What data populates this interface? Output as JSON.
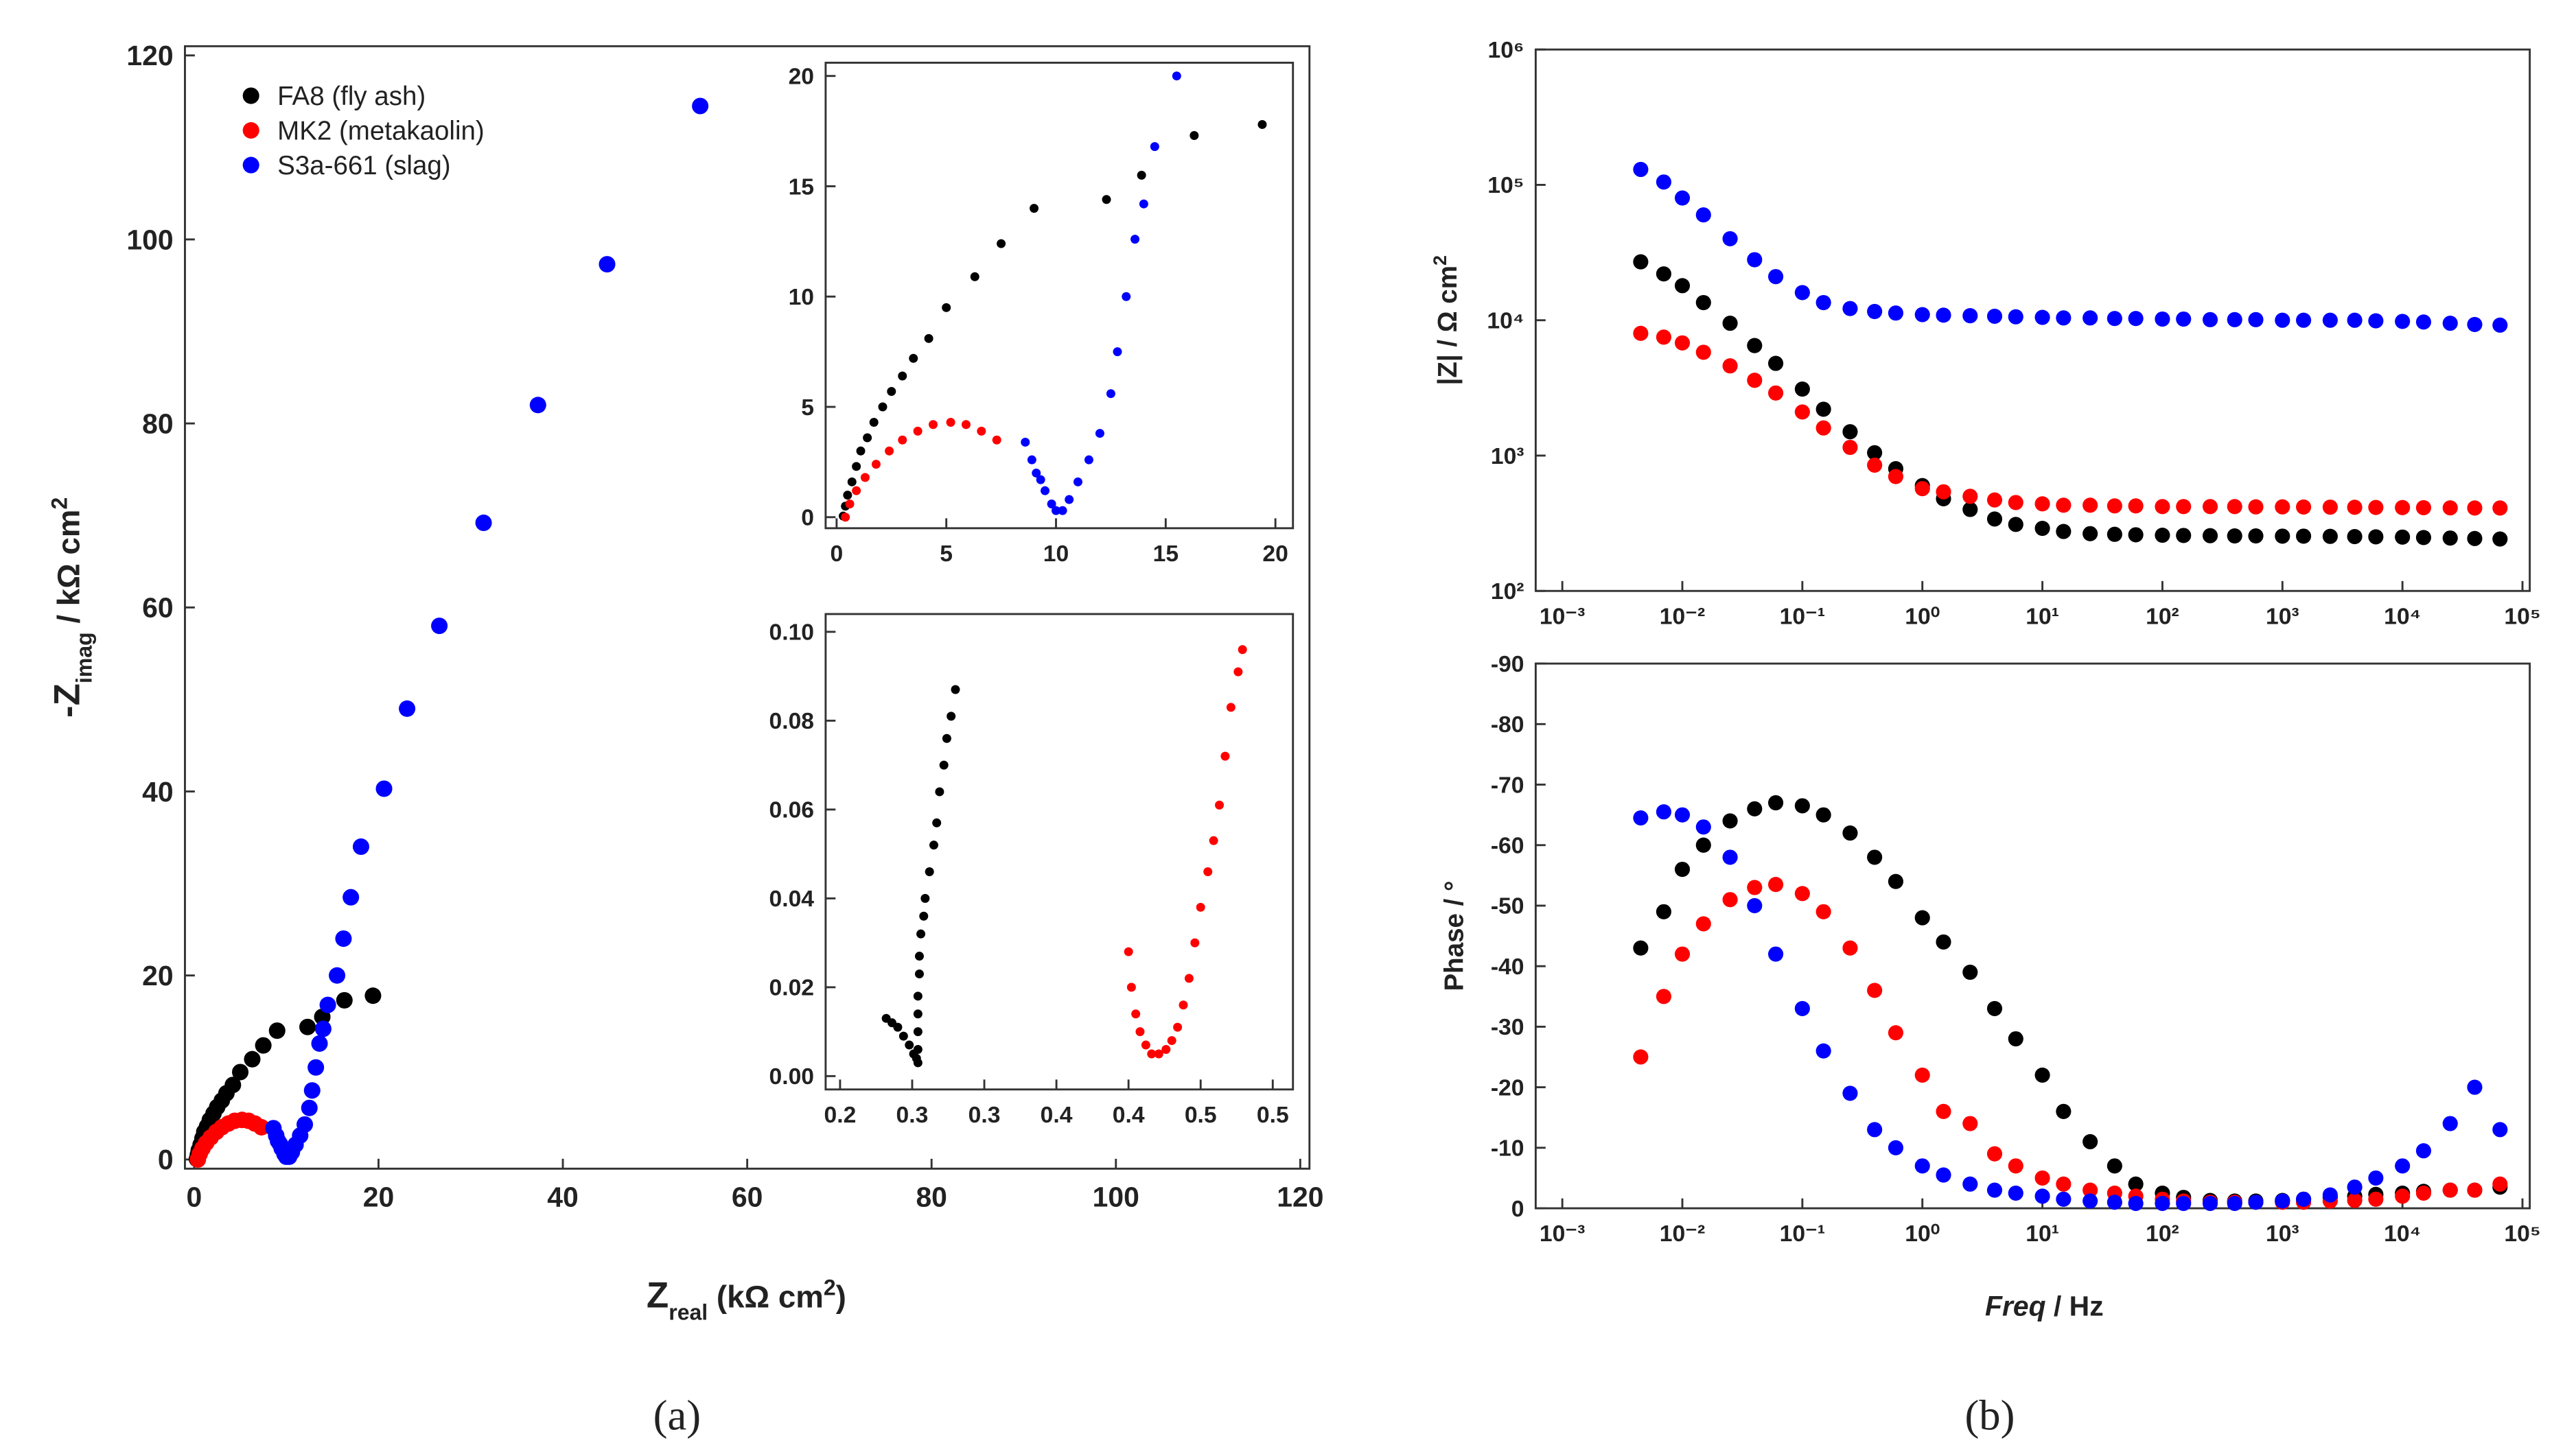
{
  "panel_labels": [
    "(a)",
    "(b)"
  ],
  "chart_data": [
    {
      "type": "scatter",
      "xlabel": [
        "Z",
        "real",
        " (kΩ cm",
        "2",
        ")"
      ],
      "ylabel": [
        "-Z",
        "imag",
        " / kΩ cm",
        "2"
      ],
      "xlim": [
        -1,
        121
      ],
      "ylim": [
        -1,
        121
      ],
      "xticks": [
        0,
        20,
        40,
        60,
        80,
        100,
        120
      ],
      "yticks": [
        0,
        20,
        40,
        60,
        80,
        100,
        120
      ],
      "legend": "upper left",
      "series": [
        {
          "name": "FA8 (fly ash)",
          "color": "#000000",
          "x": [
            0.3,
            0.4,
            0.5,
            0.7,
            0.9,
            1.1,
            1.4,
            1.7,
            2.1,
            2.5,
            3,
            3.5,
            4.2,
            5,
            6.3,
            7.5,
            9,
            12.3,
            13.9,
            16.3,
            19.4
          ],
          "values": [
            0.05,
            0.5,
            1,
            1.6,
            2.3,
            3,
            3.6,
            4.3,
            5,
            5.7,
            6.4,
            7.2,
            8.1,
            9.5,
            10.9,
            12.4,
            14,
            14.4,
            15.5,
            17.3,
            17.8
          ]
        },
        {
          "name": "MK2 (metakaolin)",
          "color": "#ff0000",
          "x": [
            0.4,
            0.6,
            0.9,
            1.3,
            1.8,
            2.4,
            3,
            3.7,
            4.4,
            5.2,
            5.9,
            6.6,
            7.3
          ],
          "values": [
            0,
            0.6,
            1.2,
            1.8,
            2.4,
            3,
            3.5,
            3.9,
            4.2,
            4.3,
            4.2,
            3.9,
            3.5
          ]
        },
        {
          "name": "S3a-661 (slag)",
          "color": "#0000ff",
          "x": [
            8.6,
            8.9,
            9.1,
            9.3,
            9.5,
            9.8,
            10,
            10.3,
            10.6,
            11,
            11.5,
            12,
            12.5,
            12.8,
            13.2,
            13.6,
            14,
            14.5,
            15.5,
            16.2,
            17,
            18.1,
            20.6,
            23.1,
            26.6,
            31.4,
            37.3,
            44.8,
            54.9
          ],
          "values": [
            3.4,
            2.6,
            2,
            1.7,
            1.2,
            0.6,
            0.3,
            0.3,
            0.8,
            1.6,
            2.6,
            3.8,
            5.6,
            7.5,
            10,
            12.6,
            14.2,
            16.8,
            20,
            24,
            28.5,
            34,
            40.3,
            49,
            58,
            69.2,
            82,
            97.3,
            114.5
          ]
        }
      ]
    },
    {
      "type": "scatter",
      "xlim": [
        -0.5,
        20.8
      ],
      "ylim": [
        -0.5,
        20.6
      ],
      "xticks": [
        0,
        5,
        10,
        15,
        20
      ],
      "yticks": [
        0,
        5,
        10,
        15,
        20
      ],
      "series": [
        {
          "color": "#000000",
          "x": [
            0.3,
            0.4,
            0.5,
            0.7,
            0.9,
            1.1,
            1.4,
            1.7,
            2.1,
            2.5,
            3,
            3.5,
            4.2,
            5,
            6.3,
            7.5,
            9,
            12.3,
            13.9,
            16.3,
            19.4
          ],
          "values": [
            0.05,
            0.5,
            1,
            1.6,
            2.3,
            3,
            3.6,
            4.3,
            5,
            5.7,
            6.4,
            7.2,
            8.1,
            9.5,
            10.9,
            12.4,
            14,
            14.4,
            15.5,
            17.3,
            17.8
          ]
        },
        {
          "color": "#ff0000",
          "x": [
            0.4,
            0.6,
            0.9,
            1.3,
            1.8,
            2.4,
            3,
            3.7,
            4.4,
            5.2,
            5.9,
            6.6,
            7.3
          ],
          "values": [
            0,
            0.6,
            1.2,
            1.8,
            2.4,
            3,
            3.5,
            3.9,
            4.2,
            4.3,
            4.2,
            3.9,
            3.5
          ]
        },
        {
          "color": "#0000ff",
          "x": [
            8.6,
            8.9,
            9.1,
            9.3,
            9.5,
            9.8,
            10,
            10.3,
            10.6,
            11,
            11.5,
            12,
            12.5,
            12.8,
            13.2,
            13.6,
            14,
            14.5,
            15.5
          ],
          "values": [
            3.4,
            2.6,
            2,
            1.7,
            1.2,
            0.6,
            0.3,
            0.3,
            0.8,
            1.6,
            2.6,
            3.8,
            5.6,
            7.5,
            10,
            12.6,
            14.2,
            16.8,
            20
          ]
        }
      ]
    },
    {
      "type": "scatter",
      "xlim": [
        0.19,
        0.514
      ],
      "ylim": [
        -0.003,
        0.104
      ],
      "xticks": [
        0.2,
        {
          "value": 0.25,
          "label": "0.3"
        },
        0.3,
        {
          "value": 0.35,
          "label": "0.4"
        },
        0.4,
        {
          "value": 0.45,
          "label": "0.5"
        },
        0.5
      ],
      "yticks": [
        {
          "value": 0,
          "label": "0.00"
        },
        {
          "value": 0.02,
          "label": "0.02"
        },
        {
          "value": 0.04,
          "label": "0.04"
        },
        {
          "value": 0.06,
          "label": "0.06"
        },
        {
          "value": 0.08,
          "label": "0.08"
        },
        {
          "value": 0.1,
          "label": "0.10"
        }
      ],
      "series": [
        {
          "color": "#000000",
          "x": [
            0.232,
            0.236,
            0.24,
            0.244,
            0.248,
            0.251,
            0.253,
            0.254,
            0.254,
            0.254,
            0.254,
            0.254,
            0.255,
            0.255,
            0.256,
            0.258,
            0.259,
            0.262,
            0.265,
            0.267,
            0.269,
            0.272,
            0.274,
            0.277,
            0.28
          ],
          "values": [
            0.013,
            0.012,
            0.011,
            0.009,
            0.007,
            0.005,
            0.004,
            0.003,
            0.006,
            0.01,
            0.014,
            0.018,
            0.023,
            0.027,
            0.032,
            0.036,
            0.04,
            0.046,
            0.052,
            0.057,
            0.064,
            0.07,
            0.076,
            0.081,
            0.087
          ]
        },
        {
          "color": "#ff0000",
          "x": [
            0.4,
            0.402,
            0.405,
            0.408,
            0.412,
            0.416,
            0.421,
            0.426,
            0.43,
            0.434,
            0.438,
            0.442,
            0.446,
            0.45,
            0.455,
            0.459,
            0.463,
            0.467,
            0.471,
            0.476,
            0.479
          ],
          "values": [
            0.028,
            0.02,
            0.014,
            0.01,
            0.007,
            0.005,
            0.005,
            0.006,
            0.008,
            0.011,
            0.016,
            0.022,
            0.03,
            0.038,
            0.046,
            0.053,
            0.061,
            0.072,
            0.083,
            0.091,
            0.096
          ]
        }
      ]
    },
    {
      "type": "scatter",
      "xscale": "log",
      "yscale": "log",
      "ylabel": [
        "|Z| / Ω cm",
        "2"
      ],
      "xlim": [
        0.0006,
        115000
      ],
      "ylim": [
        100,
        1000000
      ],
      "xticks": [
        {
          "value": 0.001,
          "label": "10⁻³"
        },
        {
          "value": 0.01,
          "label": "10⁻²"
        },
        {
          "value": 0.1,
          "label": "10⁻¹"
        },
        {
          "value": 1,
          "label": "10⁰"
        },
        {
          "value": 10,
          "label": "10¹"
        },
        {
          "value": 100,
          "label": "10²"
        },
        {
          "value": 1000,
          "label": "10³"
        },
        {
          "value": 10000,
          "label": "10⁴"
        },
        {
          "value": 100000,
          "label": "10⁵"
        }
      ],
      "yticks": [
        {
          "value": 100,
          "label": "10²"
        },
        {
          "value": 1000,
          "label": "10³"
        },
        {
          "value": 10000,
          "label": "10⁴"
        },
        {
          "value": 100000,
          "label": "10⁵"
        },
        {
          "value": 1000000,
          "label": "10⁶"
        }
      ],
      "x": [
        0.0045,
        0.007,
        0.01,
        0.015,
        0.025,
        0.04,
        0.06,
        0.1,
        0.15,
        0.25,
        0.4,
        0.6,
        1,
        1.5,
        2.5,
        4,
        6,
        10,
        15,
        25,
        40,
        60,
        100,
        150,
        250,
        400,
        600,
        1000,
        1500,
        2500,
        4000,
        6000,
        10000,
        15000,
        25000,
        40000,
        65000
      ],
      "series": [
        {
          "color": "#0000ff",
          "values": [
            130000,
            105000,
            80000,
            60000,
            40000,
            28000,
            21000,
            16000,
            13500,
            12200,
            11600,
            11300,
            11000,
            10900,
            10800,
            10700,
            10600,
            10500,
            10400,
            10400,
            10300,
            10300,
            10200,
            10200,
            10100,
            10100,
            10100,
            10000,
            10000,
            10000,
            10000,
            9900,
            9800,
            9700,
            9500,
            9300,
            9200
          ]
        },
        {
          "color": "#000000",
          "values": [
            27000,
            22000,
            18000,
            13500,
            9500,
            6500,
            4800,
            3100,
            2200,
            1500,
            1050,
            800,
            600,
            480,
            400,
            340,
            310,
            290,
            275,
            265,
            262,
            260,
            258,
            257,
            256,
            255,
            255,
            254,
            254,
            253,
            252,
            251,
            250,
            248,
            246,
            244,
            242
          ]
        },
        {
          "color": "#ff0000",
          "values": [
            8000,
            7500,
            6800,
            5800,
            4600,
            3600,
            2900,
            2100,
            1600,
            1150,
            850,
            700,
            570,
            540,
            500,
            470,
            450,
            440,
            430,
            430,
            425,
            425,
            420,
            420,
            420,
            420,
            418,
            418,
            417,
            416,
            415,
            414,
            413,
            412,
            411,
            410,
            410
          ]
        }
      ]
    },
    {
      "type": "scatter",
      "xscale": "log",
      "xlabel": [
        "Freq",
        " / Hz"
      ],
      "ylabel": [
        "Phase / °"
      ],
      "xlim": [
        0.0006,
        115000
      ],
      "ylim": [
        0,
        -90
      ],
      "xticks": [
        {
          "value": 0.001,
          "label": "10⁻³"
        },
        {
          "value": 0.01,
          "label": "10⁻²"
        },
        {
          "value": 0.1,
          "label": "10⁻¹"
        },
        {
          "value": 1,
          "label": "10⁰"
        },
        {
          "value": 10,
          "label": "10¹"
        },
        {
          "value": 100,
          "label": "10²"
        },
        {
          "value": 1000,
          "label": "10³"
        },
        {
          "value": 10000,
          "label": "10⁴"
        },
        {
          "value": 100000,
          "label": "10⁵"
        }
      ],
      "yticks": [
        -90,
        -80,
        -70,
        -60,
        -50,
        -40,
        -30,
        -20,
        -10,
        0
      ],
      "x": [
        0.0045,
        0.007,
        0.01,
        0.015,
        0.025,
        0.04,
        0.06,
        0.1,
        0.15,
        0.25,
        0.4,
        0.6,
        1,
        1.5,
        2.5,
        4,
        6,
        10,
        15,
        25,
        40,
        60,
        100,
        150,
        250,
        400,
        600,
        1000,
        1500,
        2500,
        4000,
        6000,
        10000,
        15000,
        25000,
        40000,
        65000
      ],
      "series": [
        {
          "color": "#000000",
          "values": [
            -43,
            -49,
            -56,
            -60,
            -64,
            -66,
            -67,
            -66.5,
            -65,
            -62,
            -58,
            -54,
            -48,
            -44,
            -39,
            -33,
            -28,
            -22,
            -16,
            -11,
            -7,
            -4,
            -2.5,
            -1.8,
            -1.3,
            -1.2,
            -1.2,
            -1.3,
            -1.5,
            -1.8,
            -2,
            -2.3,
            -2.5,
            -2.8,
            -3,
            -3,
            -3.5
          ]
        },
        {
          "color": "#ff0000",
          "values": [
            -25,
            -35,
            -42,
            -47,
            -51,
            -53,
            -53.5,
            -52,
            -49,
            -43,
            -36,
            -29,
            -22,
            -16,
            -14,
            -9,
            -7,
            -5,
            -4,
            -3,
            -2.5,
            -2,
            -1.5,
            -1.2,
            -1,
            -1,
            -1,
            -1,
            -1,
            -1.2,
            -1.3,
            -1.5,
            -2,
            -2.5,
            -3,
            -3,
            -4
          ]
        },
        {
          "color": "#0000ff",
          "values": [
            -64.5,
            -65.5,
            -65,
            -63,
            -58,
            -50,
            -42,
            -33,
            -26,
            -19,
            -13,
            -10,
            -7,
            -5.5,
            -4,
            -3,
            -2.5,
            -2,
            -1.5,
            -1.2,
            -1,
            -0.8,
            -0.8,
            -0.8,
            -0.8,
            -0.8,
            -1,
            -1.2,
            -1.5,
            -2.2,
            -3.5,
            -5,
            -7,
            -9.5,
            -14,
            -20,
            -13
          ]
        }
      ]
    }
  ]
}
